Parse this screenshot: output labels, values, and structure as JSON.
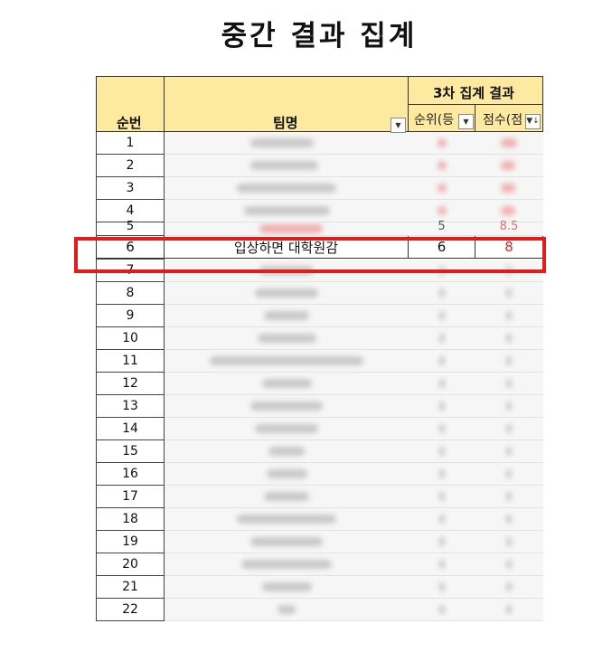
{
  "page": {
    "title": "중간 결과 집계"
  },
  "table": {
    "header": {
      "col_no": "순번",
      "col_team": "팀명",
      "group": "3차 집계 결과",
      "col_rank": "순위(등",
      "col_score": "점수(점"
    },
    "rows_top": [
      "1",
      "2",
      "3",
      "4",
      "5"
    ],
    "partial_visible": {
      "rank": "5",
      "score": "8.5"
    },
    "highlight_row": {
      "no": "6",
      "team": "입상하면 대학원감",
      "rank": "6",
      "score": "8"
    },
    "rows_bottom": [
      "7",
      "8",
      "9",
      "10",
      "11",
      "12",
      "13",
      "14",
      "15",
      "16",
      "17",
      "18",
      "19",
      "20",
      "21",
      "22"
    ]
  },
  "colors": {
    "header_bg": "#fdeaa0",
    "highlight_border": "#e31b1b",
    "score_text": "#e02020"
  },
  "icons": {
    "filter": "filter-dropdown-icon",
    "sort": "sort-descending-icon"
  }
}
